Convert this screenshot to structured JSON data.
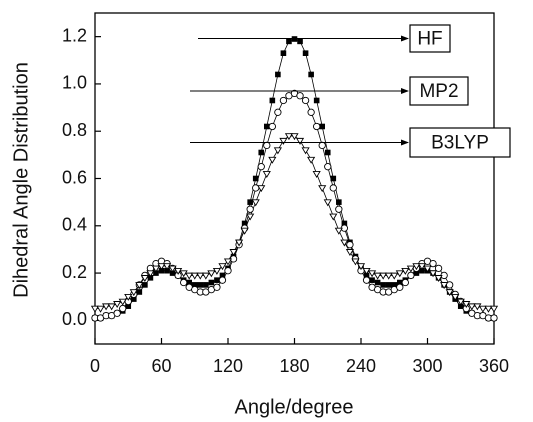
{
  "chart_data": {
    "type": "line",
    "x_label": "Angle/degree",
    "y_label": "Dihedral Angle Distribution",
    "x": [
      0,
      5,
      10,
      15,
      20,
      25,
      30,
      35,
      40,
      45,
      50,
      55,
      60,
      65,
      70,
      75,
      80,
      85,
      90,
      95,
      100,
      105,
      110,
      115,
      120,
      125,
      130,
      135,
      140,
      145,
      150,
      155,
      160,
      165,
      170,
      175,
      180,
      185,
      190,
      195,
      200,
      205,
      210,
      215,
      220,
      225,
      230,
      235,
      240,
      245,
      250,
      255,
      260,
      265,
      270,
      275,
      280,
      285,
      290,
      295,
      300,
      305,
      310,
      315,
      320,
      325,
      330,
      335,
      340,
      345,
      350,
      355,
      360
    ],
    "series": [
      {
        "name": "HF",
        "color": "#000000",
        "marker": "square",
        "values": [
          0.01,
          0.01,
          0.02,
          0.02,
          0.03,
          0.04,
          0.06,
          0.09,
          0.12,
          0.15,
          0.18,
          0.2,
          0.21,
          0.21,
          0.2,
          0.19,
          0.17,
          0.16,
          0.15,
          0.15,
          0.15,
          0.16,
          0.17,
          0.19,
          0.22,
          0.27,
          0.33,
          0.41,
          0.5,
          0.6,
          0.71,
          0.82,
          0.93,
          1.04,
          1.13,
          1.18,
          1.19,
          1.18,
          1.13,
          1.04,
          0.93,
          0.82,
          0.71,
          0.6,
          0.5,
          0.41,
          0.33,
          0.27,
          0.22,
          0.19,
          0.17,
          0.16,
          0.15,
          0.15,
          0.15,
          0.16,
          0.17,
          0.19,
          0.2,
          0.21,
          0.21,
          0.2,
          0.18,
          0.15,
          0.12,
          0.09,
          0.06,
          0.04,
          0.03,
          0.02,
          0.02,
          0.01,
          0.01
        ]
      },
      {
        "name": "MP2",
        "color": "#000000",
        "marker": "circle",
        "values": [
          0.01,
          0.01,
          0.02,
          0.02,
          0.03,
          0.05,
          0.08,
          0.11,
          0.15,
          0.19,
          0.22,
          0.24,
          0.25,
          0.24,
          0.22,
          0.19,
          0.16,
          0.14,
          0.13,
          0.12,
          0.12,
          0.13,
          0.14,
          0.17,
          0.21,
          0.26,
          0.32,
          0.39,
          0.47,
          0.56,
          0.65,
          0.74,
          0.82,
          0.88,
          0.93,
          0.95,
          0.96,
          0.95,
          0.93,
          0.88,
          0.82,
          0.74,
          0.65,
          0.56,
          0.47,
          0.39,
          0.32,
          0.26,
          0.21,
          0.17,
          0.14,
          0.13,
          0.12,
          0.12,
          0.13,
          0.14,
          0.16,
          0.19,
          0.22,
          0.24,
          0.25,
          0.24,
          0.22,
          0.19,
          0.15,
          0.11,
          0.08,
          0.05,
          0.03,
          0.02,
          0.02,
          0.01,
          0.01
        ]
      },
      {
        "name": "B3LYP",
        "color": "#000000",
        "marker": "triangle-down",
        "values": [
          0.05,
          0.05,
          0.06,
          0.06,
          0.07,
          0.08,
          0.1,
          0.12,
          0.15,
          0.18,
          0.2,
          0.22,
          0.23,
          0.23,
          0.22,
          0.21,
          0.2,
          0.19,
          0.19,
          0.19,
          0.19,
          0.2,
          0.21,
          0.23,
          0.25,
          0.29,
          0.33,
          0.38,
          0.44,
          0.5,
          0.56,
          0.62,
          0.68,
          0.72,
          0.76,
          0.78,
          0.78,
          0.76,
          0.72,
          0.68,
          0.62,
          0.56,
          0.5,
          0.44,
          0.38,
          0.33,
          0.29,
          0.25,
          0.23,
          0.21,
          0.2,
          0.19,
          0.19,
          0.19,
          0.19,
          0.2,
          0.21,
          0.22,
          0.23,
          0.23,
          0.22,
          0.2,
          0.18,
          0.15,
          0.12,
          0.1,
          0.08,
          0.07,
          0.06,
          0.06,
          0.05,
          0.05,
          0.05
        ]
      }
    ],
    "xlim": [
      0,
      360
    ],
    "xticks": [
      0,
      60,
      120,
      180,
      240,
      300,
      360
    ],
    "ylim": [
      -0.1,
      1.3
    ],
    "yticks": [
      {
        "value": 0,
        "label": "0.0"
      },
      0.2,
      0.4,
      0.6,
      0.8,
      {
        "value": 1,
        "label": "1.0"
      },
      1.2
    ],
    "legend": "annotations"
  }
}
